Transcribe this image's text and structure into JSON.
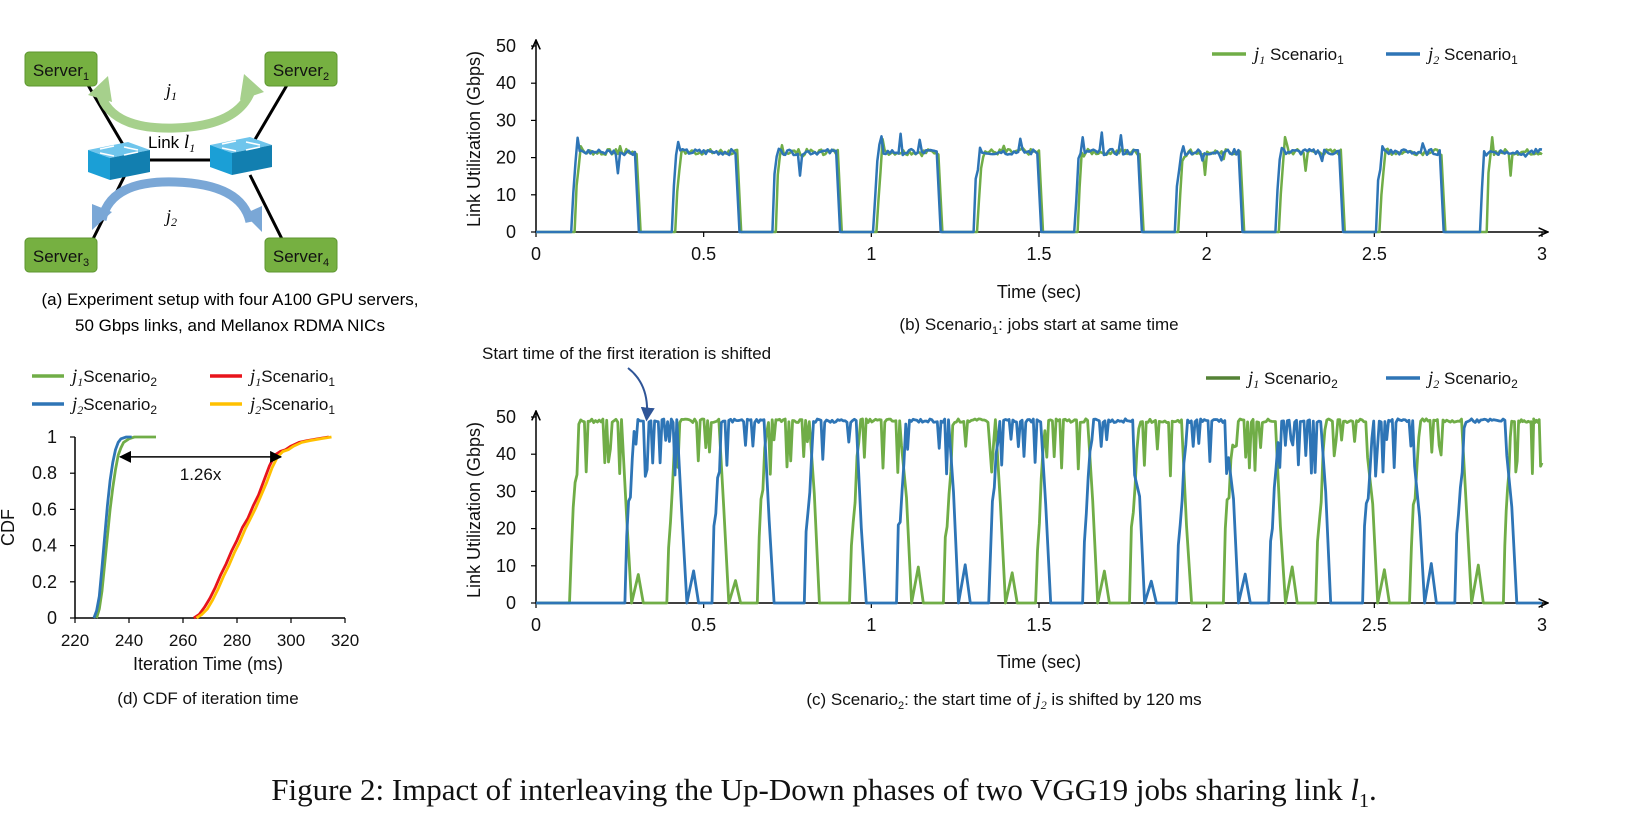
{
  "figure_caption": {
    "prefix": "Figure 2: Impact of interleaving the Up-Down phases of two VGG19 jobs sharing link ",
    "link_var": "l",
    "link_sub": "1",
    "suffix": "."
  },
  "colors": {
    "server_fill": "#76b041",
    "server_stroke": "#5d9630",
    "switch_fill": "#1b9fd6",
    "arrow_j1": "#a6d08c",
    "arrow_j2": "#7aa7d6",
    "green": "#70ad47",
    "blue": "#2e75b6",
    "dark_green": "#548235",
    "red": "#e8141c",
    "yellow": "#ffc000",
    "axis": "#000000"
  },
  "panel_a": {
    "servers": [
      {
        "label": "Server",
        "sub": "1"
      },
      {
        "label": "Server",
        "sub": "2"
      },
      {
        "label": "Server",
        "sub": "3"
      },
      {
        "label": "Server",
        "sub": "4"
      }
    ],
    "job1_label": {
      "var": "j",
      "sub": "1"
    },
    "job2_label": {
      "var": "j",
      "sub": "2"
    },
    "link_label": {
      "text": "Link ",
      "var": "l",
      "sub": "1"
    },
    "caption_line1": "(a) Experiment setup with four A100 GPU servers,",
    "caption_line2": "50 Gbps links, and Mellanox RDMA NICs"
  },
  "chart_data": [
    {
      "id": "b",
      "type": "line",
      "caption": {
        "prefix": "(b) Scenario",
        "sub": "1",
        "suffix": ": jobs start at same time"
      },
      "xlabel": "Time (sec)",
      "ylabel": "Link Utilization (Gbps)",
      "xlim": [
        0,
        3
      ],
      "ylim": [
        0,
        50
      ],
      "xticks": [
        "0",
        "0.5",
        "1",
        "1.5",
        "2",
        "2.5",
        "3"
      ],
      "yticks": [
        "0",
        "10",
        "20",
        "30",
        "40",
        "50"
      ],
      "legend_position": "top-right",
      "series": [
        {
          "name_var": "j",
          "name_sub": "1",
          "name_text": " Scenario",
          "name_text_sub": "1",
          "color": "green",
          "period": 0.3,
          "offset": 0.115,
          "on_duration": 0.185,
          "plateau": 21.5,
          "starts": [
            0.115,
            0.415,
            0.715,
            1.015,
            1.315,
            1.615,
            1.915,
            2.215,
            2.515,
            2.835
          ],
          "end_x": 3.0,
          "end_value": 21
        },
        {
          "name_var": "j",
          "name_sub": "2",
          "name_text": " Scenario",
          "name_text_sub": "1",
          "color": "blue",
          "period": 0.3,
          "offset": 0.105,
          "on_duration": 0.19,
          "plateau": 21.5,
          "starts": [
            0.105,
            0.405,
            0.705,
            1.005,
            1.305,
            1.605,
            1.905,
            2.205,
            2.505,
            2.815
          ],
          "end_x": 3.0,
          "end_value": 21
        }
      ]
    },
    {
      "id": "c",
      "type": "line",
      "caption": {
        "prefix": "(c) Scenario",
        "sub": "2",
        "mid": ": the start time of ",
        "var": "j",
        "var_sub": "2",
        "suffix": " is shifted by 120 ms"
      },
      "xlabel": "Time (sec)",
      "ylabel": "Link Utilization (Gbps)",
      "xlim": [
        0,
        3
      ],
      "ylim": [
        0,
        50
      ],
      "xticks": [
        "0",
        "0.5",
        "1",
        "1.5",
        "2",
        "2.5",
        "3"
      ],
      "yticks": [
        "0",
        "10",
        "20",
        "30",
        "40",
        "50"
      ],
      "legend_position": "top-right",
      "annotation": {
        "text": "Start time of the first iteration is shifted",
        "x": 0.33,
        "y": 49
      },
      "series": [
        {
          "name_var": "j",
          "name_sub": "1",
          "name_text": " Scenario",
          "name_text_sub": "2",
          "color": "green",
          "starts": [
            0.1,
            0.39,
            0.66,
            0.935,
            1.215,
            1.49,
            1.77,
            2.05,
            2.325,
            2.605,
            2.885
          ],
          "on_duration": 0.155,
          "plateau": 49
        },
        {
          "name_var": "j",
          "name_sub": "2",
          "name_text": " Scenario",
          "name_text_sub": "2",
          "color": "blue",
          "starts": [
            0.265,
            0.525,
            0.8,
            1.075,
            1.35,
            1.63,
            1.91,
            2.185,
            2.465,
            2.74
          ],
          "on_duration": 0.155,
          "plateau": 49
        }
      ]
    },
    {
      "id": "d",
      "type": "line",
      "caption": "(d) CDF of iteration time",
      "xlabel": "Iteration Time (ms)",
      "ylabel": "CDF",
      "xlim": [
        220,
        320
      ],
      "ylim": [
        0,
        1
      ],
      "xticks": [
        "220",
        "240",
        "260",
        "280",
        "300",
        "320"
      ],
      "yticks": [
        "0",
        "0.2",
        "0.4",
        "0.6",
        "0.8",
        "1"
      ],
      "legend_position": "top",
      "annotation": {
        "text": "1.26x",
        "from_x": 236,
        "to_x": 297,
        "y": 0.89
      },
      "series": [
        {
          "name_var": "j",
          "name_sub": "1",
          "name_text": "Scenario",
          "name_text_sub": "2",
          "color": "green",
          "x": [
            228,
            229,
            230,
            231,
            232,
            233,
            234,
            235,
            236,
            237,
            238,
            240,
            242,
            245,
            250
          ],
          "y": [
            0,
            0.05,
            0.15,
            0.3,
            0.45,
            0.6,
            0.72,
            0.82,
            0.9,
            0.94,
            0.97,
            0.99,
            1,
            1,
            1
          ]
        },
        {
          "name_var": "j",
          "name_sub": "2",
          "name_text": "Scenario",
          "name_text_sub": "2",
          "color": "blue",
          "x": [
            227,
            228,
            229,
            230,
            231,
            232,
            233,
            234,
            235,
            236,
            237,
            239,
            241
          ],
          "y": [
            0,
            0.04,
            0.12,
            0.28,
            0.45,
            0.62,
            0.76,
            0.86,
            0.93,
            0.97,
            0.99,
            1,
            1
          ]
        },
        {
          "name_var": "j",
          "name_sub": "1",
          "name_text": "Scenario",
          "name_text_sub": "1",
          "color": "red",
          "x": [
            264,
            266,
            268,
            270,
            272,
            274,
            276,
            278,
            280,
            282,
            284,
            286,
            288,
            290,
            292,
            294,
            296,
            298,
            300,
            303,
            306,
            310,
            314
          ],
          "y": [
            0,
            0.02,
            0.06,
            0.11,
            0.17,
            0.24,
            0.3,
            0.37,
            0.43,
            0.5,
            0.55,
            0.62,
            0.68,
            0.76,
            0.84,
            0.9,
            0.92,
            0.93,
            0.95,
            0.97,
            0.98,
            0.99,
            1
          ]
        },
        {
          "name_var": "j",
          "name_sub": "2",
          "name_text": "Scenario",
          "name_text_sub": "1",
          "color": "yellow",
          "x": [
            265,
            267,
            269,
            271,
            273,
            275,
            277,
            279,
            281,
            283,
            285,
            287,
            289,
            291,
            293,
            295,
            297,
            299,
            301,
            304,
            307,
            311,
            315
          ],
          "y": [
            0,
            0.02,
            0.05,
            0.1,
            0.16,
            0.23,
            0.29,
            0.36,
            0.42,
            0.49,
            0.55,
            0.61,
            0.68,
            0.75,
            0.83,
            0.89,
            0.92,
            0.93,
            0.95,
            0.97,
            0.98,
            0.99,
            1
          ]
        }
      ]
    }
  ]
}
